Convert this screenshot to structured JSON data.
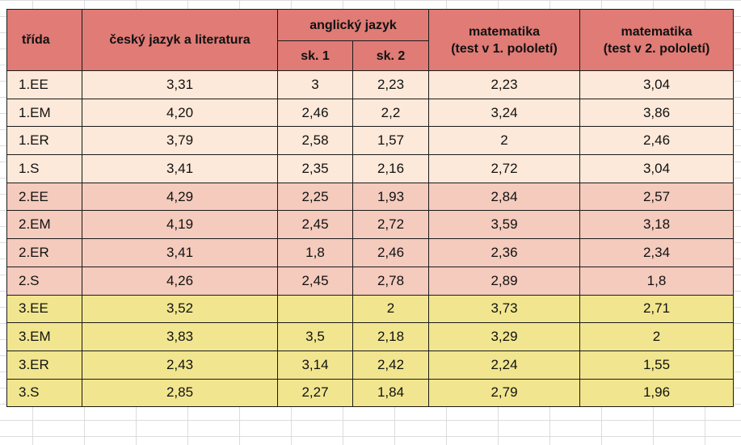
{
  "colors": {
    "header": "#e07b76",
    "group_1": "#fde9d9",
    "group_2": "#f4cbbd",
    "group_3": "#f1e68f",
    "border": "#1a1a1a"
  },
  "headers": {
    "trida": "třída",
    "cesky": "český jazyk a literatura",
    "anglicky": "anglický jazyk",
    "sk1": "sk. 1",
    "sk2": "sk. 2",
    "mat1_line1": "matematika",
    "mat1_line2": "(test v 1. pololetí)",
    "mat2_line1": "matematika",
    "mat2_line2": "(test v 2. pololetí)"
  },
  "rows": [
    {
      "group": 1,
      "trida": "1.EE",
      "cesky": "3,31",
      "sk1": "3",
      "sk2": "2,23",
      "mat1": "2,23",
      "mat2": "3,04"
    },
    {
      "group": 1,
      "trida": "1.EM",
      "cesky": "4,20",
      "sk1": "2,46",
      "sk2": "2,2",
      "mat1": "3,24",
      "mat2": "3,86"
    },
    {
      "group": 1,
      "trida": "1.ER",
      "cesky": "3,79",
      "sk1": "2,58",
      "sk2": "1,57",
      "mat1": "2",
      "mat2": "2,46"
    },
    {
      "group": 1,
      "trida": "1.S",
      "cesky": "3,41",
      "sk1": "2,35",
      "sk2": "2,16",
      "mat1": "2,72",
      "mat2": "3,04"
    },
    {
      "group": 2,
      "trida": "2.EE",
      "cesky": "4,29",
      "sk1": "2,25",
      "sk2": "1,93",
      "mat1": "2,84",
      "mat2": "2,57"
    },
    {
      "group": 2,
      "trida": "2.EM",
      "cesky": "4,19",
      "sk1": "2,45",
      "sk2": "2,72",
      "mat1": "3,59",
      "mat2": "3,18"
    },
    {
      "group": 2,
      "trida": "2.ER",
      "cesky": "3,41",
      "sk1": "1,8",
      "sk2": "2,46",
      "mat1": "2,36",
      "mat2": "2,34"
    },
    {
      "group": 2,
      "trida": "2.S",
      "cesky": "4,26",
      "sk1": "2,45",
      "sk2": "2,78",
      "mat1": "2,89",
      "mat2": "1,8"
    },
    {
      "group": 3,
      "trida": "3.EE",
      "cesky": "3,52",
      "sk1": "",
      "sk2": "2",
      "mat1": "3,73",
      "mat2": "2,71"
    },
    {
      "group": 3,
      "trida": "3.EM",
      "cesky": "3,83",
      "sk1": "3,5",
      "sk2": "2,18",
      "mat1": "3,29",
      "mat2": "2"
    },
    {
      "group": 3,
      "trida": "3.ER",
      "cesky": "2,43",
      "sk1": "3,14",
      "sk2": "2,42",
      "mat1": "2,24",
      "mat2": "1,55"
    },
    {
      "group": 3,
      "trida": "3.S",
      "cesky": "2,85",
      "sk1": "2,27",
      "sk2": "1,84",
      "mat1": "2,79",
      "mat2": "1,96"
    }
  ]
}
